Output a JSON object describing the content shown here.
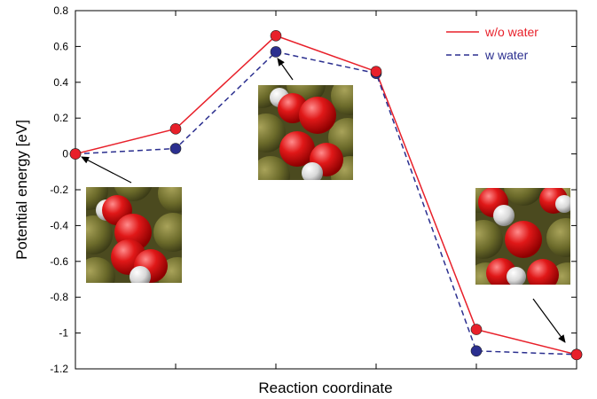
{
  "chart_data": {
    "type": "line",
    "title": "",
    "xlabel": "Reaction  coordinate",
    "ylabel": "Potential  energy [eV]",
    "x": [
      1,
      2,
      3,
      4,
      5,
      6
    ],
    "xlim": [
      1,
      6
    ],
    "ylim": [
      -1.2,
      0.8
    ],
    "yticks": [
      0.8,
      0.6,
      0.4,
      0.2,
      0,
      -0.2,
      -0.4,
      -0.6,
      -0.8,
      -1,
      -1.2
    ],
    "ytick_labels": [
      "0.8",
      "0.6",
      "0.4",
      "0.2",
      "0",
      "-0.2",
      "-0.4",
      "-0.6",
      "-0.8",
      "-1",
      "-1.2"
    ],
    "grid": false,
    "legend_position": "top-right",
    "series": [
      {
        "name": "w/o water",
        "color": "#e8202a",
        "dash": "solid",
        "marker": "circle",
        "marker_color": "#e8202a",
        "values": [
          0.0,
          0.14,
          0.66,
          0.46,
          -0.98,
          -1.12
        ]
      },
      {
        "name": "w  water",
        "color": "#2b2f8f",
        "dash": "dashed",
        "marker": "circle",
        "marker_color": "#2b2f8f",
        "values": [
          0.0,
          0.03,
          0.57,
          0.45,
          -1.1,
          -1.12
        ]
      }
    ],
    "insets": [
      {
        "name": "initial-state-molecule-image",
        "points_to_x": 1,
        "points_to_y": 0.0
      },
      {
        "name": "transition-state-molecule-image",
        "points_to_x": 3,
        "points_to_y": 0.57
      },
      {
        "name": "final-state-molecule-image",
        "points_to_x": 6,
        "points_to_y": -1.12
      }
    ]
  }
}
